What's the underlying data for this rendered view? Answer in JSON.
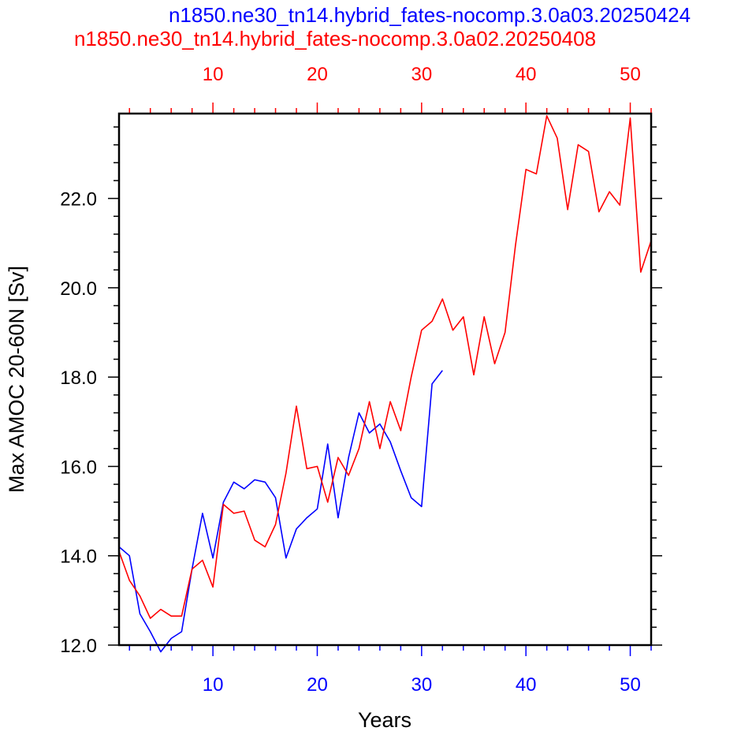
{
  "chart_data": {
    "type": "line",
    "titles": [
      {
        "text": "n1850.ne30_tn14.hybrid_fates-nocomp.3.0a03.20250424",
        "color": "#0000ff"
      },
      {
        "text": "n1850.ne30_tn14.hybrid_fates-nocomp.3.0a02.20250408",
        "color": "#ff0000"
      }
    ],
    "xlabel": "Years",
    "ylabel": "Max AMOC 20-60N [Sv]",
    "xlim": [
      1,
      52
    ],
    "ylim": [
      12,
      23.9
    ],
    "x_ticks": [
      "10",
      "20",
      "30",
      "40",
      "50"
    ],
    "y_ticks": [
      "12.0",
      "14.0",
      "16.0",
      "18.0",
      "20.0",
      "22.0"
    ],
    "grid": false,
    "top_axis_color": "#ff0000",
    "bottom_axis_color": "#0000ff",
    "series": [
      {
        "color": "#0000ff",
        "x": [
          1,
          2,
          3,
          4,
          5,
          6,
          7,
          8,
          9,
          10,
          11,
          12,
          13,
          14,
          15,
          16,
          17,
          18,
          19,
          20,
          21,
          22,
          23,
          24,
          25,
          26,
          27,
          28,
          29,
          30,
          31,
          32
        ],
        "values": [
          14.2,
          14.0,
          12.7,
          12.3,
          11.85,
          12.15,
          12.3,
          13.7,
          14.95,
          13.95,
          15.2,
          15.65,
          15.5,
          15.7,
          15.65,
          15.3,
          13.95,
          14.6,
          14.85,
          15.05,
          16.5,
          14.85,
          16.2,
          17.2,
          16.75,
          16.95,
          16.55,
          15.9,
          15.3,
          15.1,
          17.85,
          18.15
        ]
      },
      {
        "color": "#ff0000",
        "x": [
          1,
          2,
          3,
          4,
          5,
          6,
          7,
          8,
          9,
          10,
          11,
          12,
          13,
          14,
          15,
          16,
          17,
          18,
          19,
          20,
          21,
          22,
          23,
          24,
          25,
          26,
          27,
          28,
          29,
          30,
          31,
          32,
          33,
          34,
          35,
          36,
          37,
          38,
          39,
          40,
          41,
          42,
          43,
          44,
          45,
          46,
          47,
          48,
          49,
          50,
          51,
          52
        ],
        "values": [
          14.1,
          13.45,
          13.1,
          12.6,
          12.8,
          12.65,
          12.65,
          13.7,
          13.9,
          13.3,
          15.15,
          14.95,
          15.0,
          14.35,
          14.2,
          14.7,
          15.85,
          17.35,
          15.95,
          16.0,
          15.2,
          16.2,
          15.8,
          16.4,
          17.45,
          16.4,
          17.45,
          16.8,
          18.0,
          19.05,
          19.25,
          19.75,
          19.05,
          19.35,
          18.05,
          19.35,
          18.3,
          19.0,
          20.95,
          22.65,
          22.55,
          23.85,
          23.35,
          21.75,
          23.2,
          23.05,
          21.7,
          22.15,
          21.85,
          23.8,
          20.35,
          21.05
        ]
      }
    ]
  }
}
